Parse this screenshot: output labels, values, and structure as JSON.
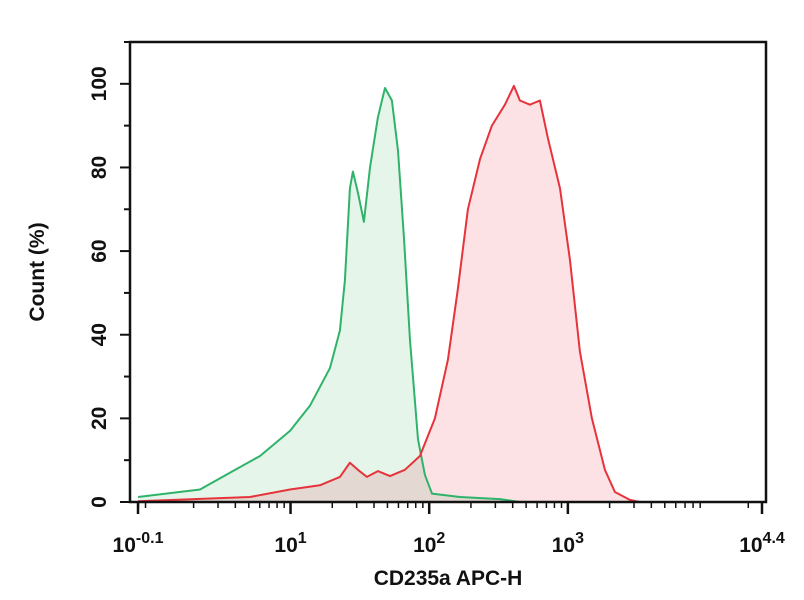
{
  "chart_data": {
    "type": "area",
    "title": "",
    "xlabel": "CD235a APC-H",
    "ylabel": "Count (%)",
    "x_scale": "log10",
    "xlim": [
      -0.1,
      4.4
    ],
    "ylim": [
      0,
      110
    ],
    "x_ticks": [
      {
        "value": -0.1,
        "base": "10",
        "exp": "-0.1"
      },
      {
        "value": 1,
        "base": "10",
        "exp": "1"
      },
      {
        "value": 2,
        "base": "10",
        "exp": "2"
      },
      {
        "value": 3,
        "base": "10",
        "exp": "3"
      },
      {
        "value": 4.4,
        "base": "10",
        "exp": "4.4"
      }
    ],
    "y_ticks": [
      0,
      20,
      40,
      60,
      80,
      100
    ],
    "grid": false,
    "legend": "none",
    "series": [
      {
        "color": "#2fb36a",
        "fill": "#e6f5ea",
        "points": [
          [
            -0.1,
            1.2
          ],
          [
            0.347,
            3
          ],
          [
            0.563,
            7
          ],
          [
            0.78,
            11
          ],
          [
            0.996,
            17
          ],
          [
            1.14,
            23
          ],
          [
            1.284,
            32
          ],
          [
            1.356,
            41
          ],
          [
            1.392,
            53
          ],
          [
            1.428,
            75
          ],
          [
            1.45,
            79
          ],
          [
            1.486,
            74
          ],
          [
            1.529,
            67
          ],
          [
            1.573,
            80
          ],
          [
            1.63,
            92
          ],
          [
            1.681,
            99
          ],
          [
            1.731,
            96
          ],
          [
            1.775,
            84
          ],
          [
            1.818,
            63
          ],
          [
            1.861,
            39
          ],
          [
            1.919,
            15
          ],
          [
            1.969,
            6.5
          ],
          [
            2.02,
            2
          ],
          [
            2.222,
            1.2
          ],
          [
            2.51,
            0.7
          ],
          [
            2.654,
            0
          ]
        ]
      },
      {
        "color": "#e6333b",
        "fill": "#fde2e5",
        "points": [
          [
            -0.1,
            0.2
          ],
          [
            0.708,
            1.2
          ],
          [
            0.996,
            3
          ],
          [
            1.212,
            4
          ],
          [
            1.356,
            6
          ],
          [
            1.428,
            9.4
          ],
          [
            1.486,
            7.7
          ],
          [
            1.551,
            6
          ],
          [
            1.63,
            7.4
          ],
          [
            1.717,
            6.2
          ],
          [
            1.825,
            7.7
          ],
          [
            1.933,
            11
          ],
          [
            2.041,
            20
          ],
          [
            2.135,
            34
          ],
          [
            2.207,
            51
          ],
          [
            2.279,
            70
          ],
          [
            2.366,
            82
          ],
          [
            2.452,
            90
          ],
          [
            2.546,
            95
          ],
          [
            2.611,
            99.5
          ],
          [
            2.654,
            96
          ],
          [
            2.726,
            95
          ],
          [
            2.798,
            96
          ],
          [
            2.856,
            87
          ],
          [
            2.943,
            75
          ],
          [
            3.015,
            58
          ],
          [
            3.087,
            36
          ],
          [
            3.173,
            20
          ],
          [
            3.267,
            7.7
          ],
          [
            3.339,
            2.4
          ],
          [
            3.447,
            0.5
          ],
          [
            3.519,
            0
          ]
        ]
      }
    ]
  }
}
